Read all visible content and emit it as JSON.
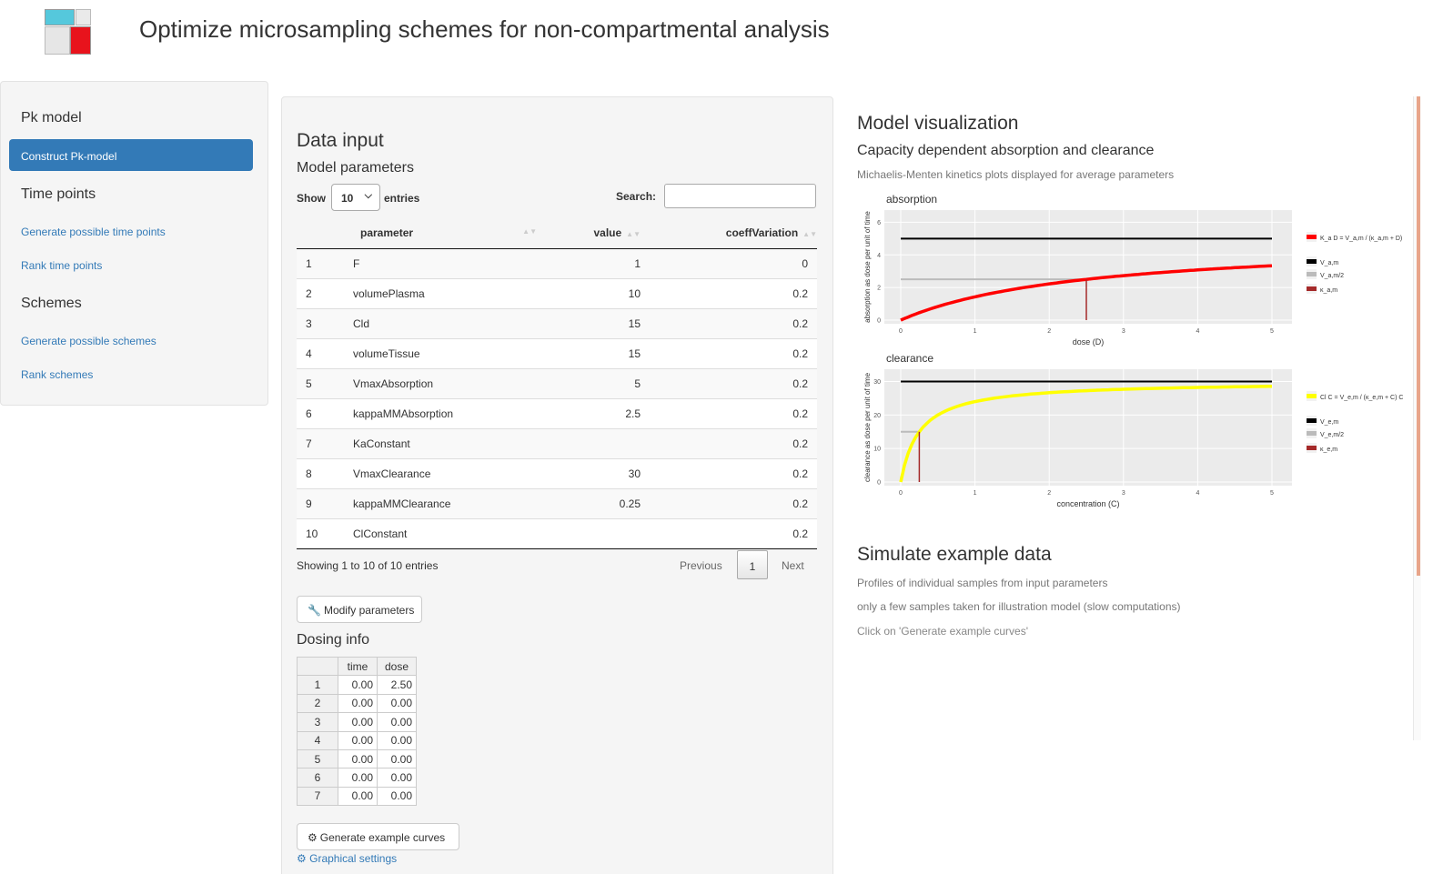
{
  "header": {
    "title": "Optimize microsampling schemes for non-compartmental analysis",
    "logo_colors": {
      "cyan": "#55c8dc",
      "red": "#e8131c",
      "gray": "#e8e8e8"
    }
  },
  "sidebar": {
    "section_pk": "Pk model",
    "active_item": "Construct Pk-model",
    "section_time": "Time points",
    "time_links": [
      "Generate possible time points",
      "Rank time points"
    ],
    "section_schemes": "Schemes",
    "scheme_links": [
      "Generate possible schemes",
      "Rank schemes"
    ]
  },
  "data_input": {
    "title": "Data input",
    "subtitle": "Model parameters",
    "show_label": "Show",
    "entries_value": "10",
    "entries_label": "entries",
    "search_label": "Search:",
    "columns": [
      "parameter",
      "value",
      "coeffVariation"
    ],
    "rows": [
      {
        "n": "1",
        "parameter": "F",
        "value": "1",
        "cv": "0"
      },
      {
        "n": "2",
        "parameter": "volumePlasma",
        "value": "10",
        "cv": "0.2"
      },
      {
        "n": "3",
        "parameter": "Cld",
        "value": "15",
        "cv": "0.2"
      },
      {
        "n": "4",
        "parameter": "volumeTissue",
        "value": "15",
        "cv": "0.2"
      },
      {
        "n": "5",
        "parameter": "VmaxAbsorption",
        "value": "5",
        "cv": "0.2"
      },
      {
        "n": "6",
        "parameter": "kappaMMAbsorption",
        "value": "2.5",
        "cv": "0.2"
      },
      {
        "n": "7",
        "parameter": "KaConstant",
        "value": "",
        "cv": "0.2"
      },
      {
        "n": "8",
        "parameter": "VmaxClearance",
        "value": "30",
        "cv": "0.2"
      },
      {
        "n": "9",
        "parameter": "kappaMMClearance",
        "value": "0.25",
        "cv": "0.2"
      },
      {
        "n": "10",
        "parameter": "ClConstant",
        "value": "",
        "cv": "0.2"
      }
    ],
    "info": "Showing 1 to 10 of 10 entries",
    "pagination": {
      "previous": "Previous",
      "current": "1",
      "next": "Next"
    },
    "modify_button": "Modify parameters",
    "dosing_title": "Dosing info",
    "dosing_columns": [
      "time",
      "dose"
    ],
    "dosing_rows": [
      [
        "1",
        "0.00",
        "2.50"
      ],
      [
        "2",
        "0.00",
        "0.00"
      ],
      [
        "3",
        "0.00",
        "0.00"
      ],
      [
        "4",
        "0.00",
        "0.00"
      ],
      [
        "5",
        "0.00",
        "0.00"
      ],
      [
        "6",
        "0.00",
        "0.00"
      ],
      [
        "7",
        "0.00",
        "0.00"
      ]
    ],
    "generate_button": "Generate example curves",
    "graphical_link": "Graphical settings"
  },
  "model_viz": {
    "title": "Model visualization",
    "subtitle": "Capacity dependent absorption and clearance",
    "description": "Michaelis-Menten kinetics plots displayed for average parameters"
  },
  "chart_data": [
    {
      "type": "line",
      "title": "absorption",
      "xlabel": "dose (D)",
      "ylabel": "absorption as dose per unit of time",
      "xlim": [
        0,
        5
      ],
      "ylim": [
        0,
        6
      ],
      "xticks": [
        "0",
        "1",
        "2",
        "3",
        "4",
        "5"
      ],
      "yticks": [
        "0",
        "2",
        "4",
        "6"
      ],
      "vmax": 5,
      "kappa": 2.5,
      "legend": [
        "K_a D = V_a,m / (κ_a,m + D) D",
        "V_a,m",
        "V_a,m/2",
        "κ_a,m"
      ],
      "colors": {
        "curve": "#ff0000",
        "vmax": "#000000",
        "half": "#bbbbbb",
        "kappa": "#a52a2a"
      }
    },
    {
      "type": "line",
      "title": "clearance",
      "xlabel": "concentration (C)",
      "ylabel": "clearance as dose per unit of time",
      "xlim": [
        0,
        5
      ],
      "ylim": [
        0,
        30
      ],
      "xticks": [
        "0",
        "1",
        "2",
        "3",
        "4",
        "5"
      ],
      "yticks": [
        "0",
        "10",
        "20",
        "30"
      ],
      "vmax": 30,
      "kappa": 0.25,
      "legend": [
        "Cl C = V_e,m / (κ_e,m + C) C",
        "V_e,m",
        "V_e,m/2",
        "κ_e,m"
      ],
      "colors": {
        "curve": "#ffff00",
        "vmax": "#000000",
        "half": "#bbbbbb",
        "kappa": "#a52a2a"
      }
    }
  ],
  "simulate": {
    "title": "Simulate example data",
    "lines": [
      "Profiles of individual samples from input parameters",
      "only a few samples taken for illustration model (slow computations)",
      "Click on 'Generate example curves'"
    ]
  }
}
